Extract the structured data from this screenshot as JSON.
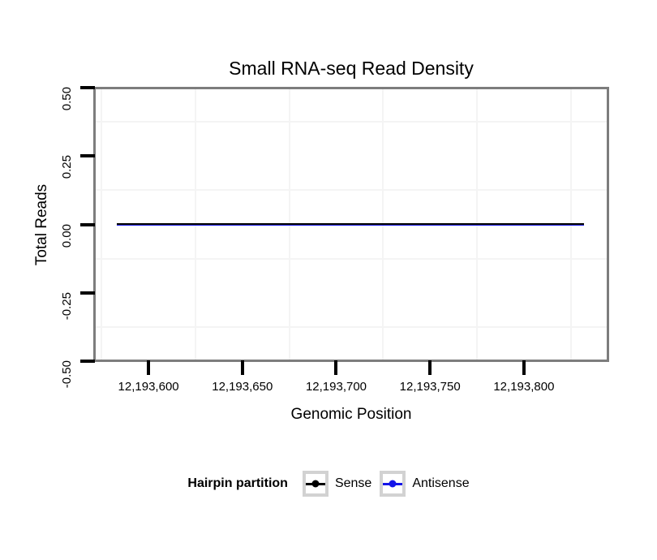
{
  "title": "Small RNA-seq Read Density",
  "legend": {
    "title": "Hairpin partition",
    "items": [
      {
        "label": "Sense",
        "color": "#000000"
      },
      {
        "label": "Antisense",
        "color": "#1414e8"
      }
    ]
  },
  "chart_data": {
    "type": "line",
    "title": "Small RNA-seq Read Density",
    "xlabel": "Genomic Position",
    "ylabel": "Total Reads",
    "xlim": [
      12193571,
      12193845
    ],
    "ylim": [
      -0.5,
      0.5
    ],
    "grid": "minor-only",
    "legend_position": "bottom",
    "x_ticks": [
      {
        "value": 12193600,
        "label": "12,193,600"
      },
      {
        "value": 12193650,
        "label": "12,193,650"
      },
      {
        "value": 12193700,
        "label": "12,193,700"
      },
      {
        "value": 12193750,
        "label": "12,193,750"
      },
      {
        "value": 12193800,
        "label": "12,193,800"
      }
    ],
    "y_ticks": [
      {
        "value": 0.5,
        "label": "0.50"
      },
      {
        "value": 0.25,
        "label": "0.25"
      },
      {
        "value": 0,
        "label": "0.00"
      },
      {
        "value": -0.25,
        "label": "-0.25"
      },
      {
        "value": -0.5,
        "label": "-0.50"
      }
    ],
    "series": [
      {
        "name": "Sense",
        "color": "#000000",
        "x": [
          12193583,
          12193832
        ],
        "y": [
          0,
          0
        ]
      },
      {
        "name": "Antisense",
        "color": "#1414e8",
        "x": [
          12193583,
          12193832
        ],
        "y": [
          0,
          0
        ]
      }
    ]
  }
}
